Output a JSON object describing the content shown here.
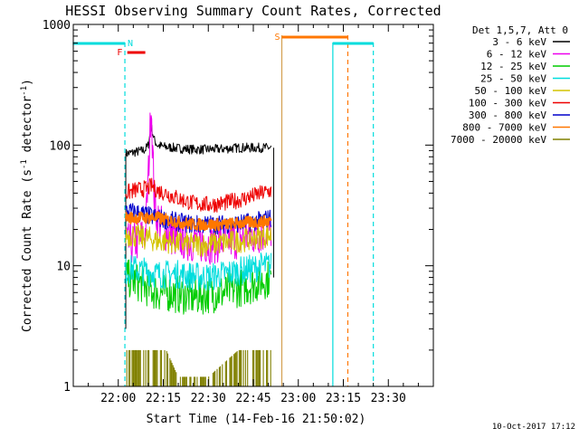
{
  "chart_data": {
    "type": "line",
    "title": "HESSI Observing Summary Count Rates, Corrected",
    "xlabel": "Start Time (14-Feb-16 21:50:02)",
    "ylabel_main": "Corrected Count Rate (s",
    "ylabel_sup1": "-1",
    "ylabel_mid": " detector",
    "ylabel_sup2": "-1",
    "ylabel_end": ")",
    "yscale": "log",
    "xlim_min": [
      -5,
      115
    ],
    "ylim": [
      1,
      1000
    ],
    "x_ticks": [
      {
        "value": 10,
        "label": "22:00"
      },
      {
        "value": 25,
        "label": "22:15"
      },
      {
        "value": 40,
        "label": "22:30"
      },
      {
        "value": 55,
        "label": "22:45"
      },
      {
        "value": 70,
        "label": "23:00"
      },
      {
        "value": 85,
        "label": "23:15"
      },
      {
        "value": 100,
        "label": "23:30"
      }
    ],
    "y_ticks": [
      {
        "value": 1,
        "label": "1"
      },
      {
        "value": 10,
        "label": "10"
      },
      {
        "value": 100,
        "label": "100"
      },
      {
        "value": 1000,
        "label": "1000"
      }
    ],
    "legend_title": "Det 1,5,7, Att 0",
    "legend_position": "right",
    "data_start": 12,
    "data_end": 62,
    "series": [
      {
        "name": "3 - 6 keV",
        "color": "#000000",
        "values": [
          [
            12.5,
            85
          ],
          [
            14,
            86
          ],
          [
            16,
            88
          ],
          [
            18,
            90
          ],
          [
            19,
            92
          ],
          [
            20,
            100
          ],
          [
            20.5,
            120
          ],
          [
            21,
            140
          ],
          [
            21.5,
            125
          ],
          [
            22,
            110
          ],
          [
            23,
            100
          ],
          [
            25,
            97
          ],
          [
            30,
            94
          ],
          [
            35,
            92
          ],
          [
            40,
            92
          ],
          [
            45,
            93
          ],
          [
            50,
            95
          ],
          [
            55,
            95
          ],
          [
            58,
            95
          ],
          [
            61,
            95
          ]
        ]
      },
      {
        "name": "6 - 12 keV",
        "color": "#ee00ee",
        "values": [
          [
            12.5,
            15
          ],
          [
            14,
            15
          ],
          [
            16,
            16
          ],
          [
            18,
            17
          ],
          [
            19,
            19
          ],
          [
            19.5,
            30
          ],
          [
            20,
            55
          ],
          [
            20.5,
            110
          ],
          [
            21,
            255
          ],
          [
            21.3,
            120
          ],
          [
            21.7,
            60
          ],
          [
            22,
            35
          ],
          [
            23,
            25
          ],
          [
            25,
            20
          ],
          [
            28,
            18
          ],
          [
            30,
            17
          ],
          [
            35,
            16
          ],
          [
            40,
            15.5
          ],
          [
            45,
            16
          ],
          [
            50,
            17
          ],
          [
            55,
            18
          ],
          [
            58,
            19
          ],
          [
            61,
            20
          ]
        ]
      },
      {
        "name": "12 - 25 keV",
        "color": "#00cc00",
        "values": [
          [
            12.5,
            8
          ],
          [
            15,
            7.5
          ],
          [
            18,
            7
          ],
          [
            20,
            6.5
          ],
          [
            23,
            6
          ],
          [
            26,
            6
          ],
          [
            30,
            5.8
          ],
          [
            35,
            5.5
          ],
          [
            40,
            5.8
          ],
          [
            45,
            6
          ],
          [
            50,
            6.5
          ],
          [
            55,
            7
          ],
          [
            58,
            7.5
          ],
          [
            61,
            8
          ]
        ]
      },
      {
        "name": "25 - 50 keV",
        "color": "#00dddd",
        "values": [
          [
            12.5,
            9
          ],
          [
            15,
            9.5
          ],
          [
            18,
            9
          ],
          [
            20,
            9
          ],
          [
            23,
            8.5
          ],
          [
            26,
            8.5
          ],
          [
            30,
            8.5
          ],
          [
            35,
            8.2
          ],
          [
            40,
            8
          ],
          [
            45,
            8.5
          ],
          [
            50,
            9
          ],
          [
            55,
            9.5
          ],
          [
            58,
            10
          ],
          [
            61,
            10
          ]
        ]
      },
      {
        "name": "50 - 100 keV",
        "color": "#d4c400",
        "values": [
          [
            12.5,
            18
          ],
          [
            15,
            18
          ],
          [
            18,
            17
          ],
          [
            20,
            17
          ],
          [
            23,
            16
          ],
          [
            26,
            16
          ],
          [
            30,
            15.5
          ],
          [
            35,
            15
          ],
          [
            40,
            15
          ],
          [
            45,
            15.5
          ],
          [
            50,
            16
          ],
          [
            55,
            17
          ],
          [
            58,
            17.5
          ],
          [
            61,
            18
          ]
        ]
      },
      {
        "name": "100 - 300 keV",
        "color": "#ee0000",
        "values": [
          [
            12.5,
            40
          ],
          [
            15,
            42
          ],
          [
            18,
            43
          ],
          [
            20,
            44
          ],
          [
            21,
            46
          ],
          [
            23,
            42
          ],
          [
            26,
            40
          ],
          [
            30,
            36
          ],
          [
            35,
            33
          ],
          [
            40,
            32
          ],
          [
            45,
            33
          ],
          [
            50,
            35
          ],
          [
            55,
            38
          ],
          [
            58,
            40
          ],
          [
            61,
            42
          ]
        ]
      },
      {
        "name": "300 - 800 keV",
        "color": "#0000cc",
        "values": [
          [
            12.5,
            28
          ],
          [
            15,
            28
          ],
          [
            18,
            27
          ],
          [
            20,
            26
          ],
          [
            23,
            25
          ],
          [
            26,
            24
          ],
          [
            30,
            23
          ],
          [
            35,
            22
          ],
          [
            40,
            22
          ],
          [
            45,
            22
          ],
          [
            50,
            22.5
          ],
          [
            55,
            23
          ],
          [
            58,
            24
          ],
          [
            61,
            25
          ]
        ]
      },
      {
        "name": "800 - 7000 keV",
        "color": "#ff7700",
        "values": [
          [
            12.5,
            25
          ],
          [
            15,
            25
          ],
          [
            18,
            25
          ],
          [
            20,
            25
          ],
          [
            23,
            25
          ],
          [
            26,
            24
          ],
          [
            30,
            23
          ],
          [
            35,
            22
          ],
          [
            40,
            22
          ],
          [
            45,
            22
          ],
          [
            50,
            22.5
          ],
          [
            55,
            23
          ],
          [
            58,
            23
          ],
          [
            61,
            24
          ]
        ]
      },
      {
        "name": "7000 - 20000 keV",
        "color": "#808000",
        "values": [
          [
            12.5,
            2
          ],
          [
            15,
            2
          ],
          [
            18,
            2
          ],
          [
            20,
            2
          ],
          [
            23,
            2
          ],
          [
            26,
            2
          ],
          [
            30,
            1.2
          ],
          [
            40,
            1.2
          ],
          [
            50,
            2
          ],
          [
            55,
            2
          ],
          [
            58,
            2
          ],
          [
            61,
            2
          ]
        ]
      }
    ],
    "annotations": [
      {
        "label": "N",
        "color": "#00dddd"
      },
      {
        "label": "F",
        "color": "#ee0000"
      },
      {
        "label": "S",
        "color": "#ff7700"
      }
    ],
    "footer_date": "10-Oct-2017 17:12"
  }
}
